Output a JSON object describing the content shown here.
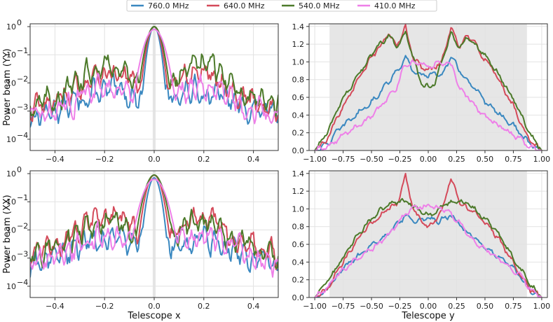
{
  "colors": {
    "760": "#3a88c0",
    "640": "#d44a5a",
    "540": "#4c7a2a",
    "410": "#ee7fe8",
    "shade": "#e6e6e6",
    "grid": "#e2e2e2"
  },
  "chart_data": {
    "type": "line",
    "legend": {
      "placement": "top-center",
      "entries": [
        "760.0 MHz",
        "640.0 MHz",
        "540.0 MHz",
        "410.0 MHz"
      ]
    },
    "panels": [
      {
        "id": "yy-x",
        "ylabel": "Power beam (YY)",
        "xlabel": "",
        "yscale": "log",
        "xlim": [
          -0.5,
          0.5
        ],
        "ylim_log10": [
          -4.4,
          0.1
        ],
        "xticks": [
          "−0.4",
          "−0.2",
          "0.0",
          "0.2",
          "0.4"
        ],
        "xtick_values": [
          -0.4,
          -0.2,
          0.0,
          0.2,
          0.4
        ],
        "yticks": [
          0,
          -1,
          -2,
          -3,
          -4
        ],
        "shade": [
          -0.006,
          0.006
        ],
        "series": [
          {
            "name": "760.0 MHz",
            "color_key": "760",
            "main_width": 0.016,
            "peak": 0.0,
            "floor_log10": -2.6,
            "plateau": 0.4
          },
          {
            "name": "640.0 MHz",
            "color_key": "640",
            "main_width": 0.019,
            "peak": 0.0,
            "floor_log10": -2.3,
            "plateau": 0.8
          },
          {
            "name": "540.0 MHz",
            "color_key": "540",
            "main_width": 0.022,
            "peak": 0.0,
            "floor_log10": -2.2,
            "plateau": 1.0
          },
          {
            "name": "410.0 MHz",
            "color_key": "410",
            "main_width": 0.028,
            "peak": -0.1,
            "floor_log10": -2.6,
            "plateau": 0.6
          }
        ]
      },
      {
        "id": "yy-y",
        "ylabel": "",
        "xlabel": "",
        "yscale": "linear",
        "xlim": [
          -1.05,
          1.05
        ],
        "ylim": [
          0.0,
          1.43
        ],
        "xticks": [
          "−1.00",
          "−0.75",
          "−0.50",
          "−0.25",
          "0.00",
          "0.25",
          "0.50",
          "0.75",
          "1.00"
        ],
        "xtick_values": [
          -1.0,
          -0.75,
          -0.5,
          -0.25,
          0.0,
          0.25,
          0.5,
          0.75,
          1.0
        ],
        "yticks": [
          "0.0",
          "0.2",
          "0.4",
          "0.6",
          "0.8",
          "1.0",
          "1.2",
          "1.4"
        ],
        "ytick_values": [
          0.0,
          0.2,
          0.4,
          0.6,
          0.8,
          1.0,
          1.2,
          1.4
        ],
        "shade": [
          -0.87,
          0.87
        ],
        "series": [
          {
            "name": "760.0 MHz",
            "color_key": "760",
            "profile": [
              [
                -1.0,
                0.0
              ],
              [
                -0.9,
                0.06
              ],
              [
                -0.75,
                0.28
              ],
              [
                -0.5,
                0.55
              ],
              [
                -0.35,
                0.78
              ],
              [
                -0.25,
                0.95
              ],
              [
                -0.2,
                1.04
              ],
              [
                -0.12,
                0.87
              ],
              [
                0.0,
                0.85
              ],
              [
                0.12,
                0.87
              ],
              [
                0.2,
                1.04
              ],
              [
                0.25,
                0.95
              ],
              [
                0.35,
                0.78
              ],
              [
                0.5,
                0.55
              ],
              [
                0.75,
                0.28
              ],
              [
                0.9,
                0.06
              ],
              [
                1.0,
                0.0
              ]
            ]
          },
          {
            "name": "640.0 MHz",
            "color_key": "640",
            "profile": [
              [
                -1.0,
                0.0
              ],
              [
                -0.9,
                0.1
              ],
              [
                -0.75,
                0.5
              ],
              [
                -0.6,
                0.85
              ],
              [
                -0.45,
                1.13
              ],
              [
                -0.35,
                1.3
              ],
              [
                -0.28,
                1.17
              ],
              [
                -0.2,
                1.38
              ],
              [
                -0.12,
                1.0
              ],
              [
                0.0,
                0.9
              ],
              [
                0.12,
                1.0
              ],
              [
                0.2,
                1.38
              ],
              [
                0.28,
                1.17
              ],
              [
                0.35,
                1.3
              ],
              [
                0.45,
                1.13
              ],
              [
                0.6,
                0.85
              ],
              [
                0.75,
                0.5
              ],
              [
                0.9,
                0.1
              ],
              [
                1.0,
                0.0
              ]
            ]
          },
          {
            "name": "540.0 MHz",
            "color_key": "540",
            "profile": [
              [
                -1.0,
                0.0
              ],
              [
                -0.9,
                0.18
              ],
              [
                -0.75,
                0.58
              ],
              [
                -0.6,
                0.9
              ],
              [
                -0.45,
                1.15
              ],
              [
                -0.35,
                1.3
              ],
              [
                -0.28,
                1.17
              ],
              [
                -0.2,
                1.33
              ],
              [
                -0.12,
                1.0
              ],
              [
                -0.06,
                0.75
              ],
              [
                0.0,
                0.72
              ],
              [
                0.06,
                0.75
              ],
              [
                0.12,
                1.0
              ],
              [
                0.2,
                1.33
              ],
              [
                0.28,
                1.17
              ],
              [
                0.35,
                1.3
              ],
              [
                0.45,
                1.15
              ],
              [
                0.6,
                0.9
              ],
              [
                0.75,
                0.58
              ],
              [
                0.9,
                0.18
              ],
              [
                1.0,
                0.0
              ]
            ]
          },
          {
            "name": "410.0 MHz",
            "color_key": "410",
            "profile": [
              [
                -1.0,
                0.0
              ],
              [
                -0.9,
                0.03
              ],
              [
                -0.75,
                0.18
              ],
              [
                -0.5,
                0.38
              ],
              [
                -0.35,
                0.6
              ],
              [
                -0.28,
                0.68
              ],
              [
                -0.22,
                0.95
              ],
              [
                -0.1,
                1.0
              ],
              [
                0.0,
                0.96
              ],
              [
                0.1,
                1.0
              ],
              [
                0.22,
                0.95
              ],
              [
                0.28,
                0.68
              ],
              [
                0.35,
                0.6
              ],
              [
                0.5,
                0.38
              ],
              [
                0.75,
                0.18
              ],
              [
                0.9,
                0.03
              ],
              [
                1.0,
                0.0
              ]
            ]
          }
        ]
      },
      {
        "id": "xx-x",
        "ylabel": "Power beam (XX)",
        "xlabel": "Telescope x",
        "yscale": "log",
        "xlim": [
          -0.5,
          0.5
        ],
        "ylim_log10": [
          -4.4,
          0.1
        ],
        "xticks": [
          "−0.4",
          "−0.2",
          "0.0",
          "0.2",
          "0.4"
        ],
        "xtick_values": [
          -0.4,
          -0.2,
          0.0,
          0.2,
          0.4
        ],
        "yticks": [
          0,
          -1,
          -2,
          -3,
          -4
        ],
        "shade": [
          -0.006,
          0.006
        ],
        "series": [
          {
            "name": "760.0 MHz",
            "color_key": "760",
            "main_width": 0.018,
            "peak": -0.15,
            "floor_log10": -2.6,
            "plateau": 0.4
          },
          {
            "name": "640.0 MHz",
            "color_key": "640",
            "main_width": 0.022,
            "peak": -0.05,
            "floor_log10": -2.3,
            "plateau": 0.9
          },
          {
            "name": "540.0 MHz",
            "color_key": "540",
            "main_width": 0.026,
            "peak": -0.05,
            "floor_log10": -2.3,
            "plateau": 0.7
          },
          {
            "name": "410.0 MHz",
            "color_key": "410",
            "main_width": 0.032,
            "peak": -0.2,
            "floor_log10": -2.6,
            "plateau": 0.5
          }
        ]
      },
      {
        "id": "xx-y",
        "ylabel": "",
        "xlabel": "Telescope y",
        "yscale": "linear",
        "xlim": [
          -1.05,
          1.05
        ],
        "ylim": [
          0.0,
          1.43
        ],
        "xticks": [
          "−1.00",
          "−0.75",
          "−0.50",
          "−0.25",
          "0.00",
          "0.25",
          "0.50",
          "0.75",
          "1.00"
        ],
        "xtick_values": [
          -1.0,
          -0.75,
          -0.5,
          -0.25,
          0.0,
          0.25,
          0.5,
          0.75,
          1.0
        ],
        "yticks": [
          "0.0",
          "0.2",
          "0.4",
          "0.6",
          "0.8",
          "1.0",
          "1.2",
          "1.4"
        ],
        "ytick_values": [
          0.0,
          0.2,
          0.4,
          0.6,
          0.8,
          1.0,
          1.2,
          1.4
        ],
        "shade": [
          -0.87,
          0.87
        ],
        "series": [
          {
            "name": "760.0 MHz",
            "color_key": "760",
            "profile": [
              [
                -1.0,
                0.0
              ],
              [
                -0.9,
                0.08
              ],
              [
                -0.75,
                0.33
              ],
              [
                -0.5,
                0.58
              ],
              [
                -0.35,
                0.72
              ],
              [
                -0.25,
                0.85
              ],
              [
                -0.2,
                0.93
              ],
              [
                -0.1,
                0.86
              ],
              [
                0.0,
                0.9
              ],
              [
                0.1,
                0.86
              ],
              [
                0.2,
                0.93
              ],
              [
                0.25,
                0.85
              ],
              [
                0.35,
                0.72
              ],
              [
                0.5,
                0.58
              ],
              [
                0.75,
                0.33
              ],
              [
                0.9,
                0.08
              ],
              [
                1.0,
                0.0
              ]
            ]
          },
          {
            "name": "640.0 MHz",
            "color_key": "640",
            "profile": [
              [
                -1.0,
                0.0
              ],
              [
                -0.9,
                0.08
              ],
              [
                -0.75,
                0.4
              ],
              [
                -0.6,
                0.7
              ],
              [
                -0.45,
                0.9
              ],
              [
                -0.35,
                1.0
              ],
              [
                -0.28,
                1.05
              ],
              [
                -0.2,
                1.35
              ],
              [
                -0.12,
                0.95
              ],
              [
                0.0,
                0.78
              ],
              [
                0.12,
                0.95
              ],
              [
                0.2,
                1.35
              ],
              [
                0.28,
                1.05
              ],
              [
                0.35,
                1.0
              ],
              [
                0.45,
                0.9
              ],
              [
                0.6,
                0.7
              ],
              [
                0.75,
                0.4
              ],
              [
                0.9,
                0.08
              ],
              [
                1.0,
                0.0
              ]
            ]
          },
          {
            "name": "540.0 MHz",
            "color_key": "540",
            "profile": [
              [
                -1.0,
                0.0
              ],
              [
                -0.9,
                0.15
              ],
              [
                -0.75,
                0.45
              ],
              [
                -0.6,
                0.75
              ],
              [
                -0.45,
                0.95
              ],
              [
                -0.35,
                1.05
              ],
              [
                -0.25,
                1.08
              ],
              [
                -0.15,
                1.05
              ],
              [
                0.0,
                0.92
              ],
              [
                0.15,
                1.05
              ],
              [
                0.25,
                1.08
              ],
              [
                0.35,
                1.05
              ],
              [
                0.45,
                0.95
              ],
              [
                0.6,
                0.75
              ],
              [
                0.75,
                0.45
              ],
              [
                0.9,
                0.15
              ],
              [
                1.0,
                0.0
              ]
            ]
          },
          {
            "name": "410.0 MHz",
            "color_key": "410",
            "profile": [
              [
                -1.0,
                0.0
              ],
              [
                -0.9,
                0.1
              ],
              [
                -0.75,
                0.32
              ],
              [
                -0.5,
                0.55
              ],
              [
                -0.35,
                0.7
              ],
              [
                -0.25,
                0.88
              ],
              [
                -0.15,
                1.0
              ],
              [
                0.0,
                1.03
              ],
              [
                0.15,
                1.0
              ],
              [
                0.25,
                0.88
              ],
              [
                0.35,
                0.7
              ],
              [
                0.5,
                0.55
              ],
              [
                0.75,
                0.32
              ],
              [
                0.9,
                0.1
              ],
              [
                1.0,
                0.0
              ]
            ]
          }
        ]
      }
    ]
  }
}
